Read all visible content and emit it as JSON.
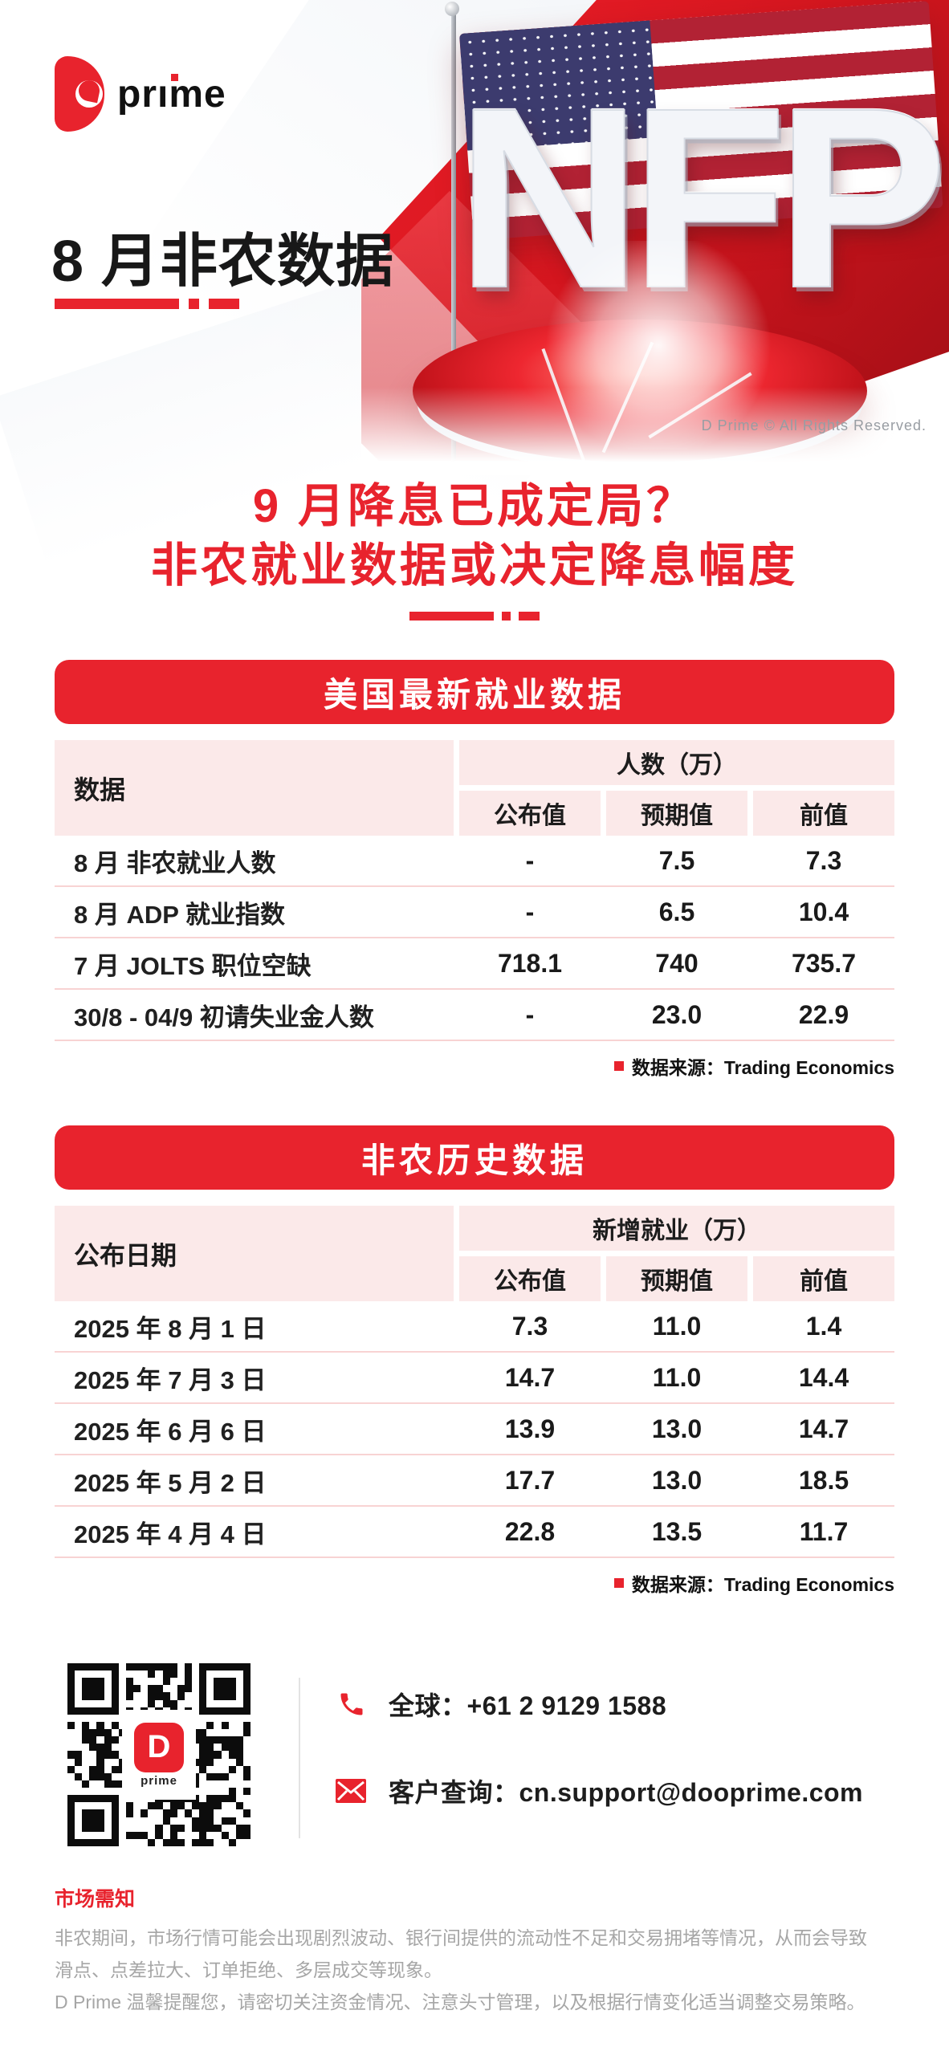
{
  "brand": {
    "logo_word": "prıme",
    "name": "D Prime"
  },
  "hero": {
    "big_text": "NFP",
    "copyright": "D Prime © All Rights Reserved."
  },
  "header": {
    "page_title": "8 月非农数据"
  },
  "headline": {
    "line1": "9 月降息已成定局？",
    "line2": "非农就业数据或决定降息幅度"
  },
  "tables": [
    {
      "banner": "美国最新就业数据",
      "col0_header": "数据",
      "group_header": "人数（万）",
      "sub_headers": [
        "公布值",
        "预期值",
        "前值"
      ],
      "rows": [
        {
          "label": "8 月 非农就业人数",
          "values": [
            "-",
            "7.5",
            "7.3"
          ]
        },
        {
          "label": "8 月 ADP 就业指数",
          "values": [
            "-",
            "6.5",
            "10.4"
          ]
        },
        {
          "label": "7 月 JOLTS 职位空缺",
          "values": [
            "718.1",
            "740",
            "735.7"
          ]
        },
        {
          "label": "30/8 - 04/9 初请失业金人数",
          "values": [
            "-",
            "23.0",
            "22.9"
          ]
        }
      ],
      "source": "数据来源：Trading Economics"
    },
    {
      "banner": "非农历史数据",
      "col0_header": "公布日期",
      "group_header": "新增就业（万）",
      "sub_headers": [
        "公布值",
        "预期值",
        "前值"
      ],
      "rows": [
        {
          "label": "2025 年 8 月 1 日",
          "values": [
            "7.3",
            "11.0",
            "1.4"
          ]
        },
        {
          "label": "2025 年 7 月 3 日",
          "values": [
            "14.7",
            "11.0",
            "14.4"
          ]
        },
        {
          "label": "2025 年 6 月 6 日",
          "values": [
            "13.9",
            "13.0",
            "14.7"
          ]
        },
        {
          "label": "2025 年 5 月 2 日",
          "values": [
            "17.7",
            "13.0",
            "18.5"
          ]
        },
        {
          "label": "2025 年 4 月 4 日",
          "values": [
            "22.8",
            "13.5",
            "11.7"
          ]
        }
      ],
      "source": "数据来源：Trading Economics"
    }
  ],
  "contact": {
    "phone_label": "全球：+61 2 9129 1588",
    "email_label": "客户查询：cn.support@dooprime.com",
    "qr_center_letter": "D",
    "qr_center_sub": "prime"
  },
  "footer": {
    "title": "市场需知",
    "lines": [
      "非农期间，市场行情可能会出现剧烈波动、银行间提供的流动性不足和交易拥堵等情况，从而会导致",
      "滑点、点差拉大、订单拒绝、多层成交等现象。",
      "D Prime 温馨提醒您，请密切关注资金情况、注意头寸管理，以及根据行情变化适当调整交易策略。"
    ]
  },
  "colors": {
    "accent": "#e8232d",
    "table_cell_pink": "#fbe9e9",
    "row_divider_pink": "#f8d3d3",
    "footer_gray": "#a6a6a6",
    "flag_red": "#b22234",
    "flag_blue": "#3c3b6e"
  }
}
